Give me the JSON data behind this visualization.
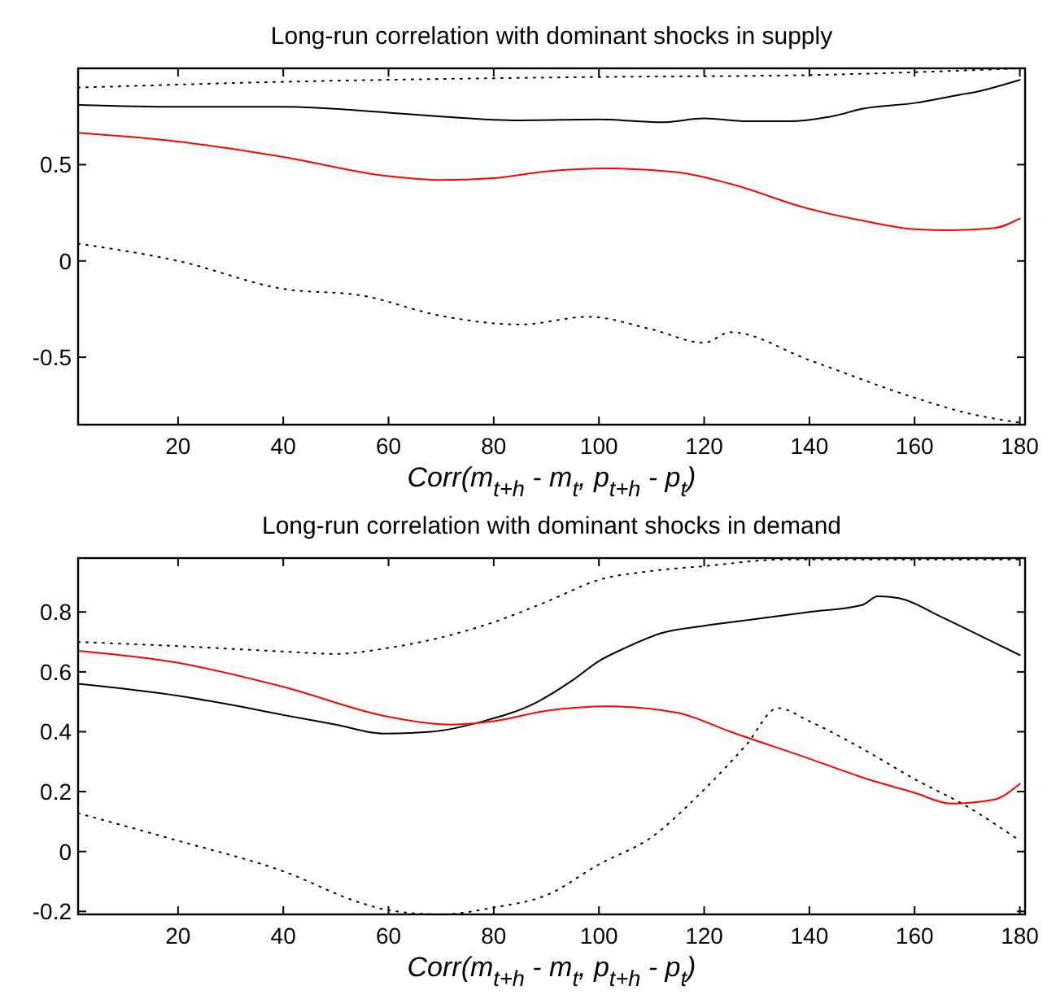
{
  "chart_data": [
    {
      "type": "line",
      "title": "Long-run correlation with dominant shocks in supply",
      "xlabel": "Corr(m$_{t+h}$ - m$_{t}$, p$_{t+h}$ - p$_{t}$)",
      "xlim": [
        1,
        181
      ],
      "ylim": [
        -0.85,
        1
      ],
      "xticks": [
        20,
        40,
        60,
        80,
        100,
        120,
        140,
        160,
        180
      ],
      "yticks": [
        -0.5,
        0,
        0.5
      ],
      "series": [
        {
          "color": "#000000",
          "line_style": "dotted",
          "x": [
            1,
            40,
            100,
            140,
            160,
            180
          ],
          "values": [
            0.9,
            0.93,
            0.955,
            0.965,
            0.98,
            1.0
          ]
        },
        {
          "color": "#000000",
          "line_style": "solid",
          "x": [
            1,
            20,
            40,
            60,
            70,
            85,
            100,
            112,
            120,
            128,
            136,
            145,
            150,
            160,
            168,
            172,
            180
          ],
          "values": [
            0.81,
            0.8,
            0.8,
            0.77,
            0.75,
            0.73,
            0.735,
            0.72,
            0.74,
            0.725,
            0.725,
            0.755,
            0.79,
            0.82,
            0.86,
            0.88,
            0.94
          ]
        },
        {
          "color": "#ff0000",
          "line_style": "solid",
          "x": [
            1,
            20,
            40,
            60,
            70,
            80,
            90,
            102,
            115,
            125,
            140,
            150,
            160,
            167,
            175,
            180
          ],
          "values": [
            0.665,
            0.62,
            0.54,
            0.44,
            0.42,
            0.43,
            0.465,
            0.48,
            0.46,
            0.4,
            0.27,
            0.21,
            0.165,
            0.16,
            0.17,
            0.22
          ]
        },
        {
          "color": "#000000",
          "line_style": "dotted",
          "x": [
            1,
            20,
            40,
            55,
            70,
            85,
            98,
            110,
            120,
            125,
            140,
            160,
            170,
            180
          ],
          "values": [
            0.09,
            0,
            -0.145,
            -0.18,
            -0.285,
            -0.33,
            -0.29,
            -0.355,
            -0.425,
            -0.37,
            -0.515,
            -0.71,
            -0.79,
            -0.84
          ]
        }
      ]
    },
    {
      "type": "line",
      "title": "Long-run correlation with dominant shocks in demand",
      "xlabel": "Corr(m$_{t+h}$ - m$_{t}$, p$_{t+h}$ - p$_{t}$)",
      "xlim": [
        1,
        181
      ],
      "ylim": [
        -0.21,
        0.98
      ],
      "xticks": [
        20,
        40,
        60,
        80,
        100,
        120,
        140,
        160,
        180
      ],
      "yticks": [
        -0.2,
        0,
        0.2,
        0.4,
        0.6,
        0.8
      ],
      "series": [
        {
          "color": "#000000",
          "line_style": "dotted",
          "x": [
            1,
            20,
            40,
            50,
            60,
            70,
            80,
            90,
            100,
            110,
            120,
            135,
            180
          ],
          "values": [
            0.7,
            0.686,
            0.668,
            0.66,
            0.68,
            0.715,
            0.766,
            0.834,
            0.907,
            0.937,
            0.953,
            0.975,
            0.975
          ]
        },
        {
          "color": "#000000",
          "line_style": "solid",
          "x": [
            1,
            20,
            30,
            40,
            50,
            59,
            68,
            78,
            88,
            95,
            100,
            105,
            112,
            120,
            130,
            140,
            150,
            153,
            157,
            165,
            173,
            180
          ],
          "values": [
            0.56,
            0.52,
            0.49,
            0.456,
            0.424,
            0.394,
            0.4,
            0.435,
            0.497,
            0.572,
            0.636,
            0.68,
            0.73,
            0.754,
            0.777,
            0.8,
            0.823,
            0.852,
            0.846,
            0.784,
            0.716,
            0.656
          ]
        },
        {
          "color": "#ff0000",
          "line_style": "solid",
          "x": [
            1,
            20,
            40,
            60,
            72,
            80,
            90,
            102,
            115,
            125,
            140,
            150,
            160,
            167,
            175,
            180
          ],
          "values": [
            0.67,
            0.63,
            0.55,
            0.45,
            0.424,
            0.435,
            0.47,
            0.485,
            0.463,
            0.4,
            0.31,
            0.248,
            0.196,
            0.16,
            0.173,
            0.226
          ]
        },
        {
          "color": "#000000",
          "line_style": "dotted",
          "x": [
            1,
            20,
            40,
            55,
            60,
            70,
            80,
            90,
            100,
            110,
            120,
            128,
            134,
            140,
            150,
            160,
            170,
            180
          ],
          "values": [
            0.128,
            0.036,
            -0.066,
            -0.173,
            -0.196,
            -0.21,
            -0.187,
            -0.146,
            -0.043,
            0.048,
            0.207,
            0.356,
            0.479,
            0.435,
            0.344,
            0.242,
            0.15,
            0.036
          ]
        }
      ]
    }
  ]
}
